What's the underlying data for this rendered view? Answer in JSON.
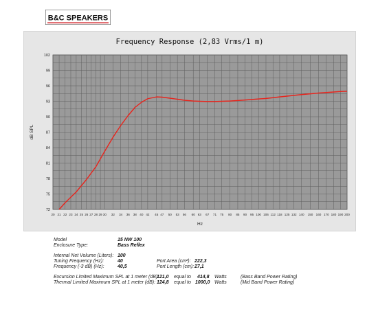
{
  "brand": {
    "logo_text": "B&C SPEAKERS",
    "logo_color": "#d21f26"
  },
  "chart_data": {
    "type": "line",
    "title": "Frequency Response (2,83 Vrms/1 m)",
    "xlabel": "Hz",
    "ylabel": "dB SPL",
    "ylim": [
      72,
      102
    ],
    "yticks": [
      72,
      75,
      78,
      81,
      84,
      87,
      90,
      93,
      96,
      99,
      102
    ],
    "xticks": [
      20,
      21,
      22,
      23,
      24,
      25,
      26,
      27,
      28,
      29,
      30,
      32,
      34,
      36,
      38,
      40,
      42,
      45,
      47,
      50,
      53,
      56,
      60,
      63,
      67,
      71,
      75,
      80,
      85,
      90,
      95,
      100,
      106,
      112,
      118,
      125,
      132,
      140,
      150,
      160,
      170,
      180,
      190,
      200
    ],
    "grid": true,
    "series": [
      {
        "color": "#e8241c",
        "x": [
          21,
          22,
          24,
          26,
          28,
          30,
          32,
          34,
          36,
          38,
          40,
          42,
          45,
          47,
          50,
          53,
          56,
          60,
          63,
          67,
          71,
          75,
          80,
          85,
          90,
          95,
          100,
          106,
          112,
          118,
          125,
          132,
          140,
          150,
          160,
          170,
          180,
          190,
          200
        ],
        "y": [
          72.0,
          73.3,
          75.4,
          77.8,
          80.3,
          83.3,
          86.0,
          88.3,
          90.2,
          91.8,
          92.8,
          93.5,
          93.85,
          93.8,
          93.6,
          93.4,
          93.2,
          93.05,
          93.0,
          92.95,
          92.95,
          93.0,
          93.05,
          93.15,
          93.25,
          93.35,
          93.45,
          93.55,
          93.7,
          93.85,
          94.0,
          94.15,
          94.3,
          94.45,
          94.6,
          94.7,
          94.8,
          94.9,
          94.95
        ]
      }
    ]
  },
  "specs": {
    "model_label": "Model",
    "model_value": "15 NW 100",
    "enclosure_label": "Enclosure Type:",
    "enclosure_value": "Bass Reflex",
    "volume_label": "Internal Net Volume (Liters):",
    "volume_value": "100",
    "tuning_label": "Tuning Frequency (Hz):",
    "tuning_value": "40",
    "f3_label": "Frequency (-3 dB) (Hz):",
    "f3_value": "40,5",
    "port_area_label": "Port Area (cm²):",
    "port_area_value": "222,3",
    "port_length_label": "Port Length (cm):",
    "port_length_value": "27,1",
    "excursion_label": "Excursion Limited Maximum SPL at 1 meter (dB):",
    "excursion_value": "121,0",
    "excursion_equal": "equal to",
    "excursion_watts": "414,8",
    "excursion_unit": "Watts",
    "excursion_note": "(Bass Band Power Rating)",
    "thermal_label": "Thermal Limited Maximum SPL at 1 meter (dB):",
    "thermal_value": "124,8",
    "thermal_equal": "equal to",
    "thermal_watts": "1000,0",
    "thermal_unit": "Watts",
    "thermal_note": "(Mid Band Power Rating)"
  }
}
